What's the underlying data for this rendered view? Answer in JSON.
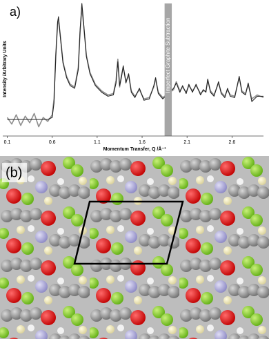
{
  "chart_data": {
    "type": "line",
    "panel_label": "a)",
    "x_label": "Momentum Transfer, Q /Å⁻¹",
    "y_label": "Intensity /Arbitrary Units",
    "x": [
      0.1,
      0.15,
      0.2,
      0.25,
      0.3,
      0.35,
      0.4,
      0.45,
      0.5,
      0.55,
      0.6,
      0.62,
      0.64,
      0.66,
      0.67,
      0.69,
      0.72,
      0.76,
      0.8,
      0.85,
      0.89,
      0.91,
      0.93,
      0.95,
      0.98,
      1.02,
      1.08,
      1.15,
      1.22,
      1.28,
      1.31,
      1.33,
      1.35,
      1.37,
      1.39,
      1.42,
      1.45,
      1.48,
      1.52,
      1.57,
      1.62,
      1.68,
      1.73,
      1.75,
      1.78,
      1.83,
      1.95,
      1.98,
      2.02,
      2.05,
      2.09,
      2.12,
      2.16,
      2.2,
      2.25,
      2.28,
      2.31,
      2.33,
      2.36,
      2.4,
      2.45,
      2.48,
      2.52,
      2.55,
      2.58,
      2.63,
      2.68,
      2.71,
      2.75,
      2.78,
      2.82,
      2.88,
      2.95
    ],
    "series": [
      {
        "color": "#8f8f8f",
        "values": [
          14,
          9,
          16,
          8,
          15,
          10,
          17,
          7,
          14,
          11,
          16,
          28,
          62,
          84,
          88,
          76,
          56,
          45,
          39,
          37,
          52,
          78,
          97,
          83,
          61,
          48,
          39,
          34,
          31,
          32,
          42,
          58,
          37,
          46,
          52,
          41,
          46,
          34,
          30,
          35,
          28,
          29,
          37,
          43,
          33,
          29,
          35,
          41,
          34,
          37,
          33,
          38,
          34,
          38,
          32,
          34,
          34,
          42,
          34,
          31,
          40,
          33,
          30,
          35,
          31,
          30,
          44,
          34,
          32,
          39,
          28,
          31,
          29
        ]
      },
      {
        "color": "#222222",
        "values": [
          12.5,
          12.5,
          12.5,
          12.5,
          12.5,
          12.5,
          12.5,
          12.5,
          12.5,
          12.5,
          14,
          25,
          60,
          86,
          90,
          75,
          55,
          44,
          38,
          36,
          50,
          80,
          100,
          85,
          60,
          47,
          38,
          33,
          30,
          31,
          40,
          56,
          38,
          44,
          53,
          40,
          47,
          33,
          29,
          36,
          27,
          28,
          38,
          44,
          32,
          28,
          36,
          40,
          33,
          38,
          32,
          39,
          33,
          39,
          31,
          35,
          33,
          43,
          33,
          30,
          41,
          32,
          29,
          36,
          30,
          29,
          45,
          33,
          31,
          40,
          26,
          30,
          30
        ]
      }
    ],
    "xlim": [
      0.05,
      2.95
    ],
    "ylim": [
      0,
      100
    ],
    "xticks": [
      0.1,
      0.6,
      1.1,
      1.6,
      2.1,
      2.6
    ],
    "annotations": [
      {
        "text": "Imperfect Graphite Subtraction",
        "x_span": [
          1.85,
          1.93
        ]
      }
    ]
  },
  "image_b": {
    "label": "(b)"
  }
}
